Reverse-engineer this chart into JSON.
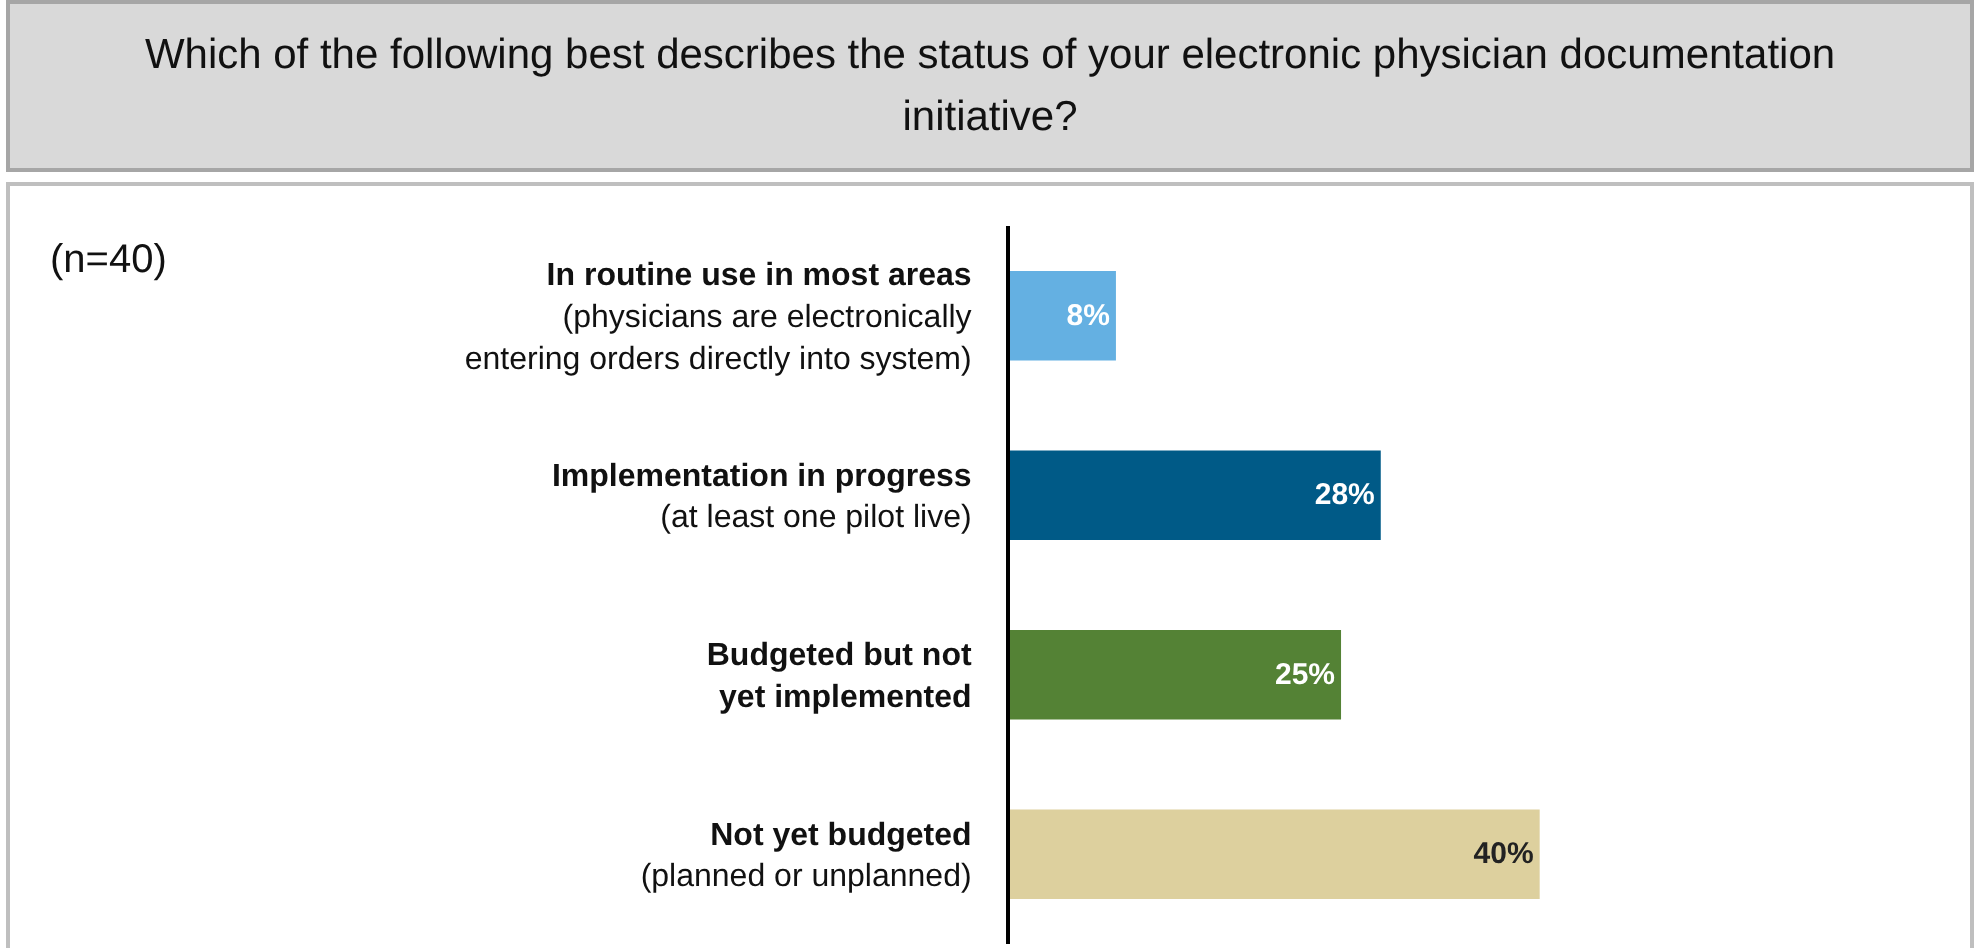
{
  "chart_data": {
    "type": "bar",
    "orientation": "horizontal",
    "title": "Which of the following best describes the status of your electronic physician documentation initiative?",
    "categories": [
      "In routine use in most areas\n(physicians are electronically\nentering orders directly into system)",
      "Implementation in progress\n(at least one pilot live)",
      "Budgeted but not\nyet implemented",
      "Not yet budgeted\n(planned or unplanned)"
    ],
    "values": [
      8,
      28,
      25,
      40
    ],
    "colors": [
      "#64b0e2",
      "#005a87",
      "#548235",
      "#ddd09e"
    ],
    "value_labels": [
      "8%",
      "28%",
      "25%",
      "40%"
    ],
    "annotations": [
      "(n=40)"
    ],
    "grid": false,
    "legend": false
  }
}
